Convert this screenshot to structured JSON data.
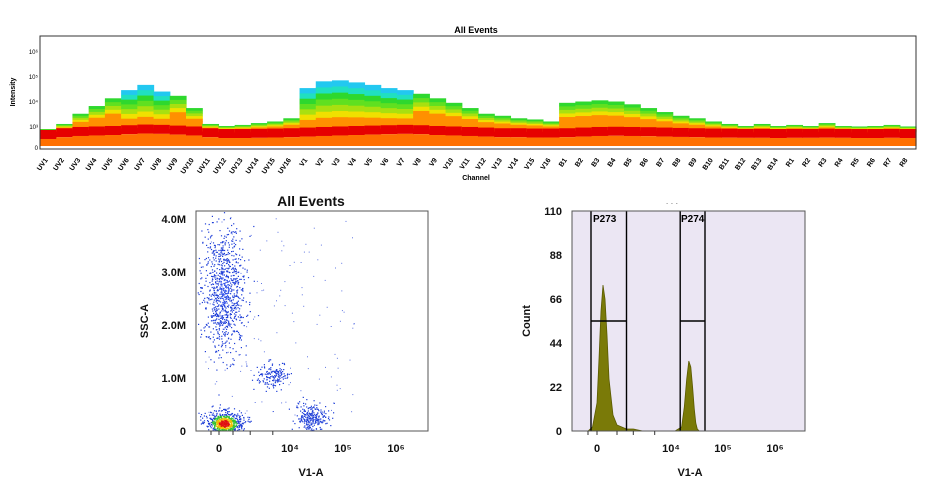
{
  "figure": {
    "top_panel": {
      "title": "All Events",
      "ylabel": "Intensity",
      "xlabel": "Channel",
      "ytick_labels": [
        "10⁶",
        "10⁵",
        "10⁴",
        "10³",
        "0"
      ]
    },
    "scatter_panel": {
      "title": "All Events",
      "xlabel": "V1-A",
      "ylabel": "SSC-A",
      "ytick_labels": [
        "4.0M",
        "3.0M",
        "2.0M",
        "1.0M",
        "0"
      ],
      "xtick_labels": [
        "0",
        "10⁴",
        "10⁵",
        "10⁶"
      ]
    },
    "histogram_panel": {
      "title_fragment": "· · ·",
      "xlabel": "V1-A",
      "ylabel": "Count",
      "ytick_labels": [
        "110",
        "88",
        "66",
        "44",
        "22",
        "0"
      ],
      "xtick_labels": [
        "0",
        "10⁴",
        "10⁵",
        "10⁶"
      ],
      "gates": [
        "P273",
        "P274"
      ]
    }
  },
  "colors": {
    "background": "#ffffff",
    "histogram_fill": "#7a7a08",
    "histogram_plot_bg": "#ebe6f3",
    "heat_low": "#2ed82e",
    "heat_high": "#e60000",
    "scatter_points": "#1f3fd8"
  },
  "chart_data": [
    {
      "type": "heatmap",
      "title": "All Events",
      "xlabel": "Channel",
      "ylabel": "Intensity",
      "scale": "log",
      "categories": [
        "UV1",
        "UV2",
        "UV3",
        "UV4",
        "UV5",
        "UV6",
        "UV7",
        "UV8",
        "UV9",
        "UV10",
        "UV11",
        "UV12",
        "UV13",
        "UV14",
        "UV15",
        "UV16",
        "V1",
        "V2",
        "V3",
        "V4",
        "V5",
        "V6",
        "V7",
        "V8",
        "V9",
        "V10",
        "V11",
        "V12",
        "V13",
        "V14",
        "V15",
        "V16",
        "B1",
        "B2",
        "B3",
        "B4",
        "B5",
        "B6",
        "B7",
        "B8",
        "B9",
        "B10",
        "B11",
        "B12",
        "B13",
        "B14",
        "R1",
        "R2",
        "R3",
        "R4",
        "R5",
        "R6",
        "R7",
        "R8"
      ],
      "max_intensity": [
        500,
        1200,
        3000,
        6000,
        12000,
        25000,
        40000,
        22000,
        15000,
        5000,
        1200,
        1000,
        1100,
        1300,
        1500,
        2000,
        30000,
        55000,
        60000,
        50000,
        40000,
        30000,
        25000,
        18000,
        12000,
        8000,
        5000,
        3000,
        2500,
        2000,
        1800,
        1500,
        8000,
        9000,
        10000,
        9000,
        7000,
        5000,
        3500,
        2500,
        2000,
        1500,
        1200,
        1000,
        1200,
        1000,
        1100,
        1000,
        1300,
        1000,
        900,
        1000,
        1100,
        900
      ],
      "peak_intensity": [
        200,
        300,
        400,
        450,
        500,
        600,
        700,
        650,
        550,
        450,
        300,
        250,
        250,
        260,
        280,
        300,
        350,
        400,
        450,
        500,
        550,
        600,
        650,
        600,
        500,
        450,
        400,
        350,
        300,
        300,
        280,
        280,
        300,
        350,
        400,
        420,
        400,
        380,
        350,
        320,
        300,
        280,
        270,
        260,
        260,
        250,
        260,
        260,
        270,
        260,
        250,
        250,
        260,
        250
      ]
    },
    {
      "type": "scatter",
      "title": "All Events",
      "xlabel": "V1-A",
      "ylabel": "SSC-A",
      "x_scale": "biexponential",
      "ylim": [
        0,
        4200000
      ],
      "clusters": [
        {
          "x": 300,
          "y": 2700000,
          "points": 900
        },
        {
          "x": 350,
          "y": 150000,
          "points": 700
        },
        {
          "x": 5000,
          "y": 1050000,
          "points": 150
        },
        {
          "x": 25000,
          "y": 250000,
          "points": 250
        }
      ]
    },
    {
      "type": "area",
      "title": "",
      "xlabel": "V1-A",
      "ylabel": "Count",
      "x_scale": "biexponential",
      "ylim": [
        0,
        110
      ],
      "gates": [
        {
          "name": "P273",
          "x_range": [
            -200,
            1500
          ]
        },
        {
          "name": "P274",
          "x_range": [
            15000,
            45000
          ]
        }
      ],
      "series": [
        {
          "x": [
            -300,
            -150,
            0,
            100,
            200,
            300,
            400,
            500,
            600,
            800,
            1000,
            1500,
            2000,
            3000,
            5000,
            8000,
            12000,
            16000,
            18000,
            20000,
            22000,
            24000,
            26000,
            28000,
            30000,
            32000,
            35000,
            40000,
            50000
          ],
          "values": [
            0,
            2,
            14,
            36,
            60,
            73,
            66,
            48,
            26,
            8,
            3,
            1,
            1,
            0,
            0,
            0,
            0,
            2,
            12,
            26,
            35,
            32,
            22,
            11,
            4,
            1,
            0,
            0,
            0
          ]
        }
      ]
    }
  ]
}
